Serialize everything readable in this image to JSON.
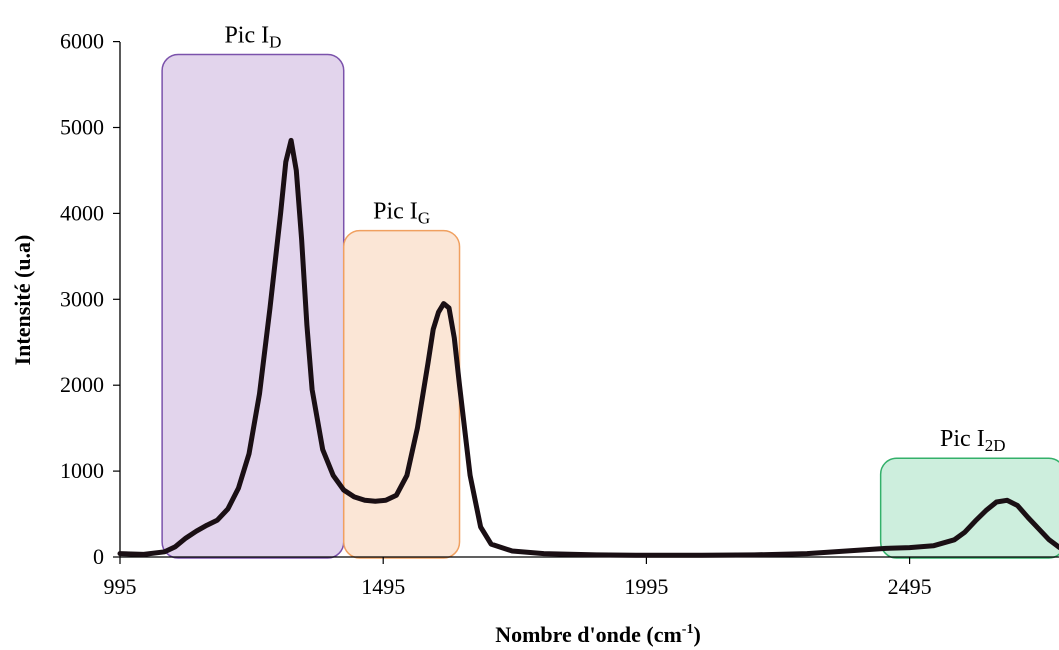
{
  "chart_data": {
    "type": "line",
    "title": "",
    "xlabel": "Nombre d'onde (cm",
    "xlabel_sup": "-1",
    "xlabel_end": ")",
    "ylabel": "Intensité (u.a)",
    "xlim": [
      995,
      2995
    ],
    "ylim": [
      0,
      6000
    ],
    "x_ticks": [
      995,
      1495,
      1995,
      2495
    ],
    "y_ticks": [
      0,
      1000,
      2000,
      3000,
      4000,
      5000,
      6000
    ],
    "grid": false,
    "series": [
      {
        "color": "#1a0f14",
        "x": [
          995,
          1040,
          1080,
          1100,
          1120,
          1140,
          1160,
          1180,
          1200,
          1220,
          1240,
          1260,
          1280,
          1300,
          1310,
          1320,
          1330,
          1340,
          1350,
          1360,
          1380,
          1400,
          1420,
          1440,
          1460,
          1480,
          1500,
          1520,
          1540,
          1560,
          1580,
          1590,
          1600,
          1610,
          1620,
          1630,
          1640,
          1660,
          1680,
          1700,
          1740,
          1800,
          1900,
          1995,
          2100,
          2200,
          2300,
          2400,
          2450,
          2495,
          2540,
          2580,
          2600,
          2620,
          2640,
          2660,
          2680,
          2700,
          2720,
          2740,
          2760,
          2780,
          2800,
          2850,
          2900,
          2995
        ],
        "y": [
          40,
          30,
          60,
          120,
          220,
          300,
          370,
          430,
          560,
          800,
          1200,
          1900,
          2900,
          4000,
          4600,
          4850,
          4500,
          3700,
          2700,
          1950,
          1250,
          950,
          780,
          700,
          660,
          650,
          660,
          720,
          950,
          1500,
          2250,
          2650,
          2850,
          2950,
          2900,
          2550,
          2000,
          950,
          350,
          150,
          70,
          40,
          25,
          20,
          20,
          25,
          40,
          80,
          100,
          110,
          130,
          200,
          290,
          420,
          540,
          640,
          660,
          600,
          460,
          330,
          200,
          110,
          60,
          40,
          30,
          40
        ]
      }
    ],
    "annotations": [
      {
        "label": "Pic I",
        "sub": "D",
        "x_range": [
          1075,
          1420
        ],
        "y_top": 5850,
        "fill": "#e2d4ec",
        "stroke": "#7b52ab"
      },
      {
        "label": "Pic I",
        "sub": "G",
        "x_range": [
          1420,
          1640
        ],
        "y_top": 3800,
        "fill": "#fbe6d6",
        "stroke": "#f0a060"
      },
      {
        "label": "Pic I",
        "sub": "2D",
        "x_range": [
          2440,
          2790
        ],
        "y_top": 1150,
        "fill": "#cdeedd",
        "stroke": "#33b06a"
      }
    ]
  }
}
